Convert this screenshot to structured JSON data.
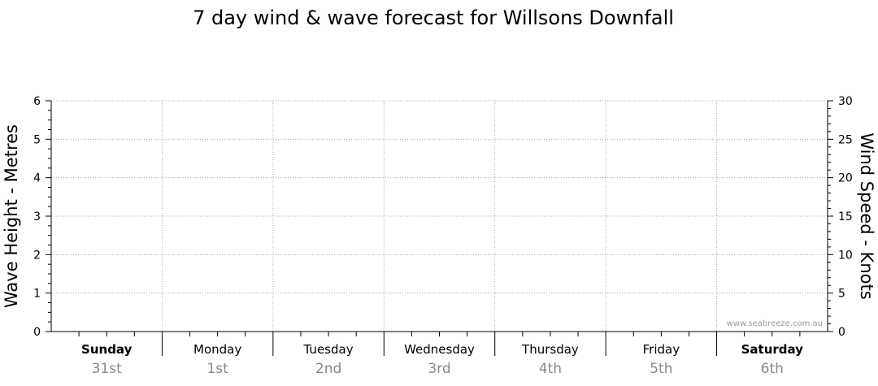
{
  "chart_data": {
    "type": "line",
    "title": "7 day wind & wave forecast for Willsons Downfall",
    "left_axis": {
      "label": "Wave Height - Metres",
      "ylim": [
        0,
        6
      ],
      "ticks": [
        "0",
        "1",
        "2",
        "3",
        "4",
        "5",
        "6"
      ]
    },
    "right_axis": {
      "label": "Wind Speed - Knots",
      "ylim": [
        0,
        30
      ],
      "ticks": [
        "0",
        "5",
        "10",
        "15",
        "20",
        "25",
        "30"
      ]
    },
    "days": [
      {
        "name": "Sunday",
        "date": "31st",
        "weekend": true
      },
      {
        "name": "Monday",
        "date": "1st",
        "weekend": false
      },
      {
        "name": "Tuesday",
        "date": "2nd",
        "weekend": false
      },
      {
        "name": "Wednesday",
        "date": "3rd",
        "weekend": false
      },
      {
        "name": "Thursday",
        "date": "4th",
        "weekend": false
      },
      {
        "name": "Friday",
        "date": "5th",
        "weekend": false
      },
      {
        "name": "Saturday",
        "date": "6th",
        "weekend": true
      }
    ],
    "series": [],
    "grid": true,
    "watermark": "www.seabreeze.com.au"
  }
}
